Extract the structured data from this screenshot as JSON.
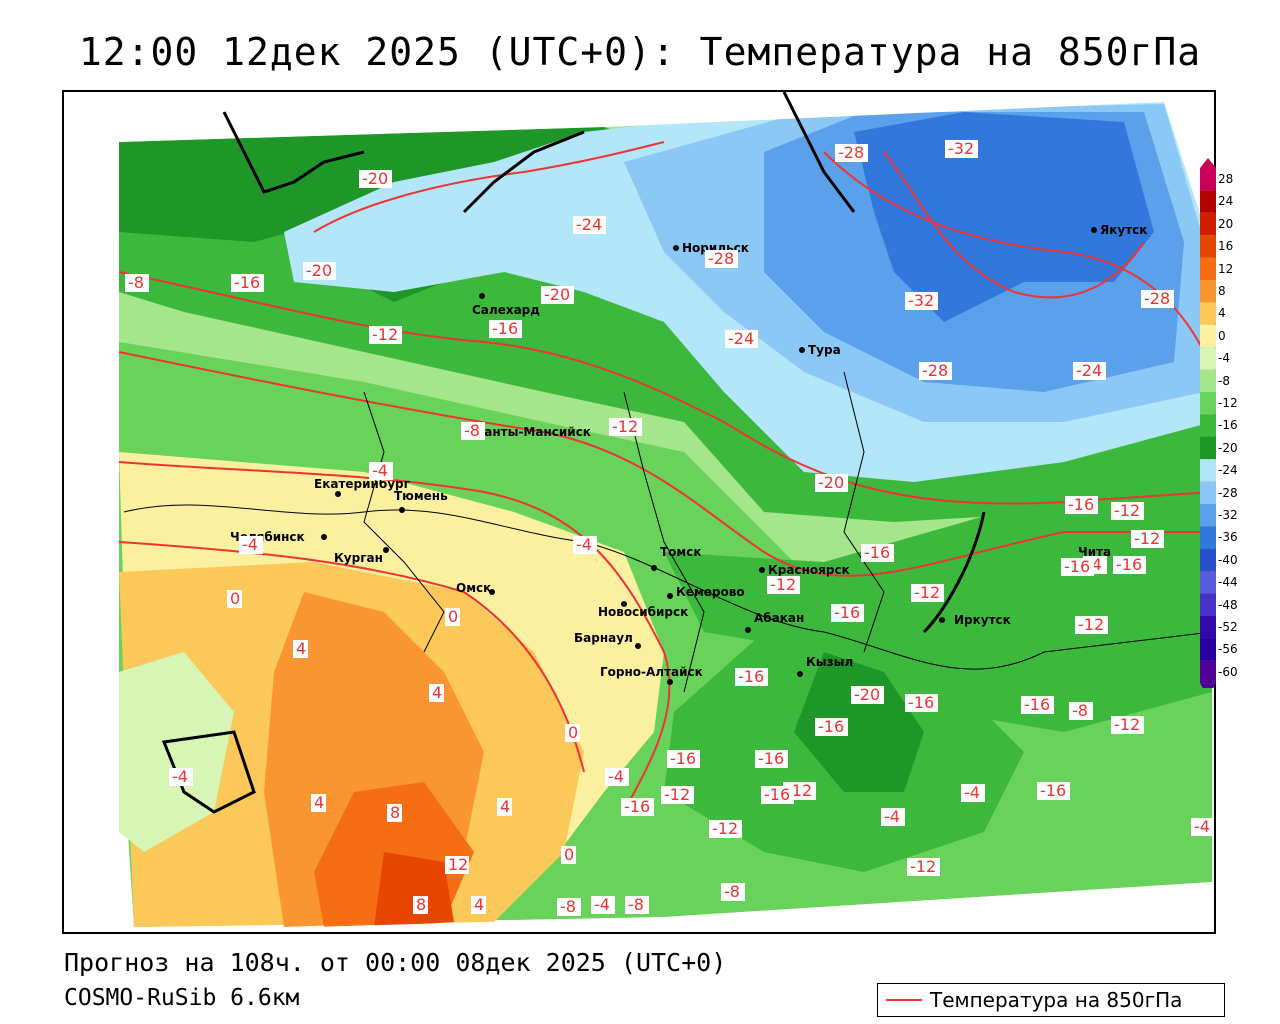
{
  "title": "12:00 12дек 2025 (UTC+0): Температура на 850гПа",
  "forecast_line": "Прогноз на 108ч. от 00:00 08дек 2025 (UTC+0)",
  "model_line": "COSMO-RuSib 6.6км",
  "legend_label": "Температура на 850гПа",
  "colors": {
    "isoline": "#ee3333",
    "border": "#000000"
  },
  "scale": {
    "values": [
      "28",
      "24",
      "20",
      "16",
      "12",
      "8",
      "4",
      "0",
      "-4",
      "-8",
      "-12",
      "-16",
      "-20",
      "-24",
      "-28",
      "-32",
      "-36",
      "-40",
      "-44",
      "-48",
      "-52",
      "-56",
      "-60"
    ],
    "colors": [
      "#c8005a",
      "#b40000",
      "#d21e00",
      "#e64600",
      "#f56e14",
      "#fa9632",
      "#fcc85a",
      "#faf0a0",
      "#d7f5b4",
      "#a5e68c",
      "#69d25a",
      "#3cb93c",
      "#1e9628",
      "#b4e6fa",
      "#8cc8f5",
      "#5aa0eb",
      "#3278dc",
      "#2850c8",
      "#5a5adc",
      "#4632c8",
      "#320aaa",
      "#2800a0",
      "#500096"
    ]
  },
  "cities": [
    {
      "name": "Норильск"
    },
    {
      "name": "Якутск"
    },
    {
      "name": "Салехард"
    },
    {
      "name": "Тура"
    },
    {
      "name": "Ханты-Мансийск"
    },
    {
      "name": "Екатеринбург"
    },
    {
      "name": "Тюмень"
    },
    {
      "name": "Челябинск"
    },
    {
      "name": "Курган"
    },
    {
      "name": "Омск"
    },
    {
      "name": "Новосибирск"
    },
    {
      "name": "Томск"
    },
    {
      "name": "Красноярск"
    },
    {
      "name": "Кемерово"
    },
    {
      "name": "Абакан"
    },
    {
      "name": "Барнаул"
    },
    {
      "name": "Горно-Алтайск"
    },
    {
      "name": "Кызыл"
    },
    {
      "name": "Иркутск"
    },
    {
      "name": "Чита"
    }
  ],
  "isolines": [
    "-20",
    "-24",
    "-28",
    "-32",
    "-28",
    "-16",
    "-20",
    "-8",
    "-12",
    "-16",
    "-20",
    "-24",
    "-32",
    "-28",
    "-24",
    "-28",
    "-8",
    "-12",
    "-4",
    "-20",
    "-16",
    "-16",
    "-12",
    "-12",
    "-16",
    "-4",
    "-4",
    "0",
    "0",
    "4",
    "4",
    "-16",
    "-12",
    "-4",
    "-20",
    "-16",
    "-16",
    "-16",
    "-12",
    "-16",
    "0",
    "-4",
    "4",
    "8",
    "4",
    "-4",
    "-16",
    "-16",
    "-12",
    "-16",
    "-16",
    "-12",
    "-12",
    "-8",
    "-8",
    "12",
    "0",
    "8",
    "4",
    "-4",
    "-8",
    "-4",
    "-12",
    "-8",
    "-16",
    "-12",
    "-12",
    "-16",
    "-4",
    "-4"
  ]
}
